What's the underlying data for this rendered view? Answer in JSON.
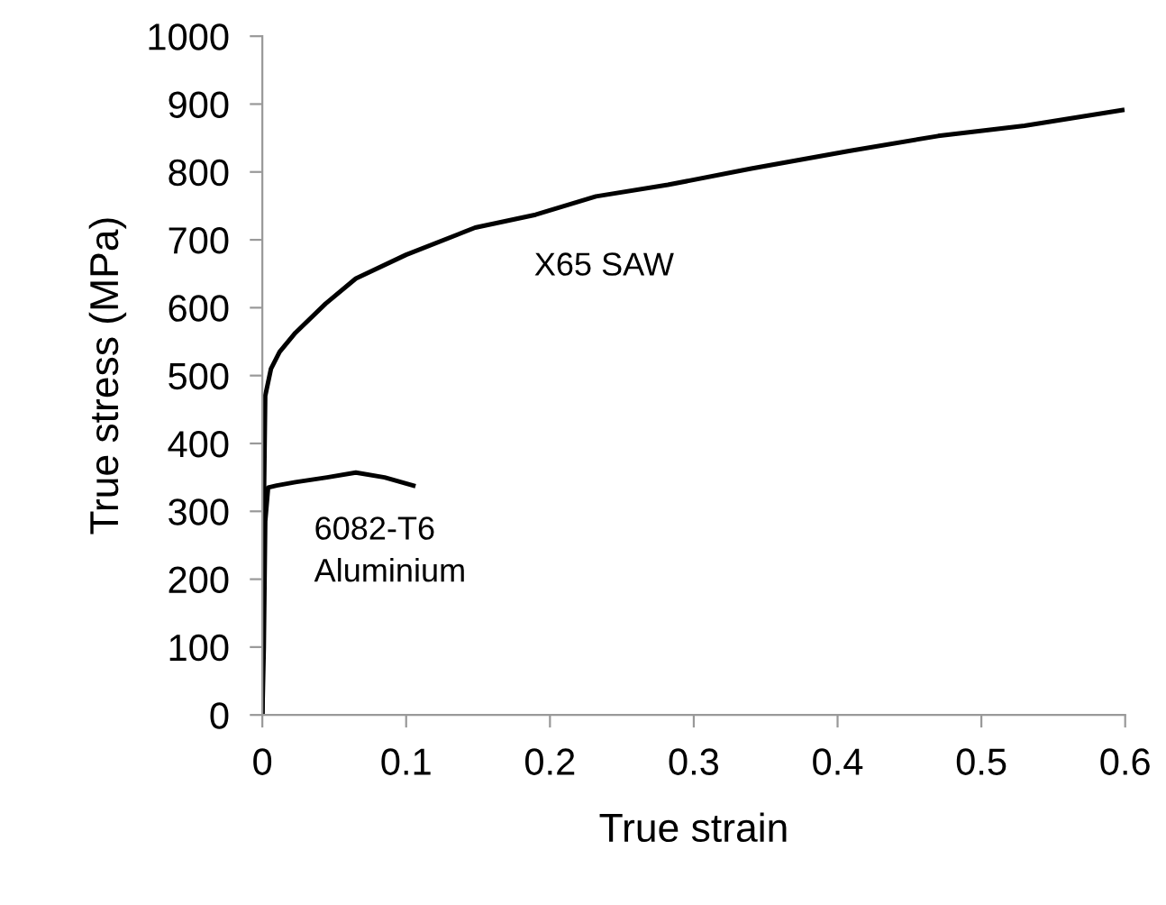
{
  "chart_data": {
    "type": "line",
    "xlabel": "True strain",
    "ylabel": "True stress (MPa)",
    "xlim": [
      0,
      0.6
    ],
    "ylim": [
      0,
      1000
    ],
    "xticks": [
      0,
      0.1,
      0.2,
      0.3,
      0.4,
      0.5,
      0.6
    ],
    "yticks": [
      0,
      100,
      200,
      300,
      400,
      500,
      600,
      700,
      800,
      900,
      1000
    ],
    "grid": false,
    "legend": false,
    "marker": "none",
    "line_style": "solid",
    "series": [
      {
        "name": "X65 SAW",
        "color": "#000000",
        "x": [
          0,
          0.001,
          0.002,
          0.006,
          0.012,
          0.023,
          0.044,
          0.065,
          0.1,
          0.148,
          0.19,
          0.232,
          0.282,
          0.34,
          0.408,
          0.47,
          0.53,
          0.598
        ],
        "values": [
          0,
          300,
          470,
          510,
          535,
          563,
          606,
          643,
          678,
          718,
          737,
          764,
          781,
          805,
          831,
          853,
          868,
          891
        ]
      },
      {
        "name": "6082-T6\nAluminium",
        "color": "#000000",
        "x": [
          0,
          0.001,
          0.002,
          0.004,
          0.01,
          0.023,
          0.045,
          0.065,
          0.085,
          0.105
        ],
        "values": [
          0,
          100,
          285,
          335,
          338,
          343,
          350,
          357,
          350,
          338
        ]
      }
    ]
  }
}
